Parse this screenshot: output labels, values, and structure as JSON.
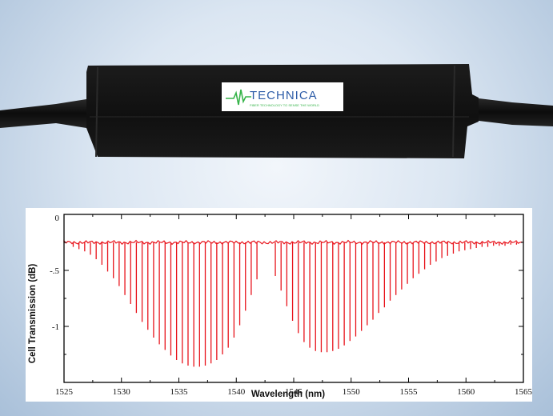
{
  "device": {
    "logo_text": "TECHNICA",
    "logo_tagline": "FIBER TECHNOLOGY TO SENSE THE WORLD",
    "colors": {
      "body": "#121212",
      "logo_blue": "#2e5da8",
      "logo_green": "#37b44a"
    }
  },
  "chart_data": {
    "type": "line",
    "xlabel": "Wavelength (nm)",
    "ylabel": "Cell Transmission (dB)",
    "xlim": [
      1525,
      1565
    ],
    "ylim": [
      -1.5,
      0
    ],
    "x_ticks": [
      1525,
      1530,
      1535,
      1540,
      1545,
      1550,
      1555,
      1560,
      1565
    ],
    "x_tick_labels": [
      "1525",
      "1530",
      "1535",
      "1540",
      "1545",
      "1550",
      "1555",
      "1560",
      "1565"
    ],
    "y_ticks": [
      0,
      -0.5,
      -1
    ],
    "y_tick_labels": [
      "0",
      "-.5",
      "-1"
    ],
    "baseline": -0.25,
    "grid": false,
    "series": [
      {
        "color": "#e8141c",
        "absorption_lines": [
          {
            "x": 1525.8,
            "y": -0.29
          },
          {
            "x": 1526.3,
            "y": -0.31
          },
          {
            "x": 1526.8,
            "y": -0.33
          },
          {
            "x": 1527.3,
            "y": -0.36
          },
          {
            "x": 1527.8,
            "y": -0.4
          },
          {
            "x": 1528.3,
            "y": -0.45
          },
          {
            "x": 1528.8,
            "y": -0.51
          },
          {
            "x": 1529.3,
            "y": -0.57
          },
          {
            "x": 1529.8,
            "y": -0.64
          },
          {
            "x": 1530.3,
            "y": -0.72
          },
          {
            "x": 1530.8,
            "y": -0.8
          },
          {
            "x": 1531.3,
            "y": -0.88
          },
          {
            "x": 1531.8,
            "y": -0.96
          },
          {
            "x": 1532.3,
            "y": -1.03
          },
          {
            "x": 1532.8,
            "y": -1.1
          },
          {
            "x": 1533.3,
            "y": -1.16
          },
          {
            "x": 1533.8,
            "y": -1.21
          },
          {
            "x": 1534.3,
            "y": -1.26
          },
          {
            "x": 1534.8,
            "y": -1.3
          },
          {
            "x": 1535.3,
            "y": -1.33
          },
          {
            "x": 1535.8,
            "y": -1.35
          },
          {
            "x": 1536.3,
            "y": -1.36
          },
          {
            "x": 1536.8,
            "y": -1.36
          },
          {
            "x": 1537.3,
            "y": -1.35
          },
          {
            "x": 1537.8,
            "y": -1.33
          },
          {
            "x": 1538.3,
            "y": -1.3
          },
          {
            "x": 1538.8,
            "y": -1.25
          },
          {
            "x": 1539.3,
            "y": -1.19
          },
          {
            "x": 1539.8,
            "y": -1.1
          },
          {
            "x": 1540.3,
            "y": -0.99
          },
          {
            "x": 1540.8,
            "y": -0.86
          },
          {
            "x": 1541.3,
            "y": -0.72
          },
          {
            "x": 1541.8,
            "y": -0.58
          },
          {
            "x": 1543.4,
            "y": -0.55
          },
          {
            "x": 1543.9,
            "y": -0.68
          },
          {
            "x": 1544.4,
            "y": -0.82
          },
          {
            "x": 1544.9,
            "y": -0.95
          },
          {
            "x": 1545.4,
            "y": -1.06
          },
          {
            "x": 1545.9,
            "y": -1.14
          },
          {
            "x": 1546.4,
            "y": -1.19
          },
          {
            "x": 1546.9,
            "y": -1.22
          },
          {
            "x": 1547.4,
            "y": -1.23
          },
          {
            "x": 1547.9,
            "y": -1.23
          },
          {
            "x": 1548.4,
            "y": -1.22
          },
          {
            "x": 1548.9,
            "y": -1.2
          },
          {
            "x": 1549.4,
            "y": -1.17
          },
          {
            "x": 1549.9,
            "y": -1.13
          },
          {
            "x": 1550.4,
            "y": -1.09
          },
          {
            "x": 1550.9,
            "y": -1.04
          },
          {
            "x": 1551.4,
            "y": -0.99
          },
          {
            "x": 1551.9,
            "y": -0.94
          },
          {
            "x": 1552.4,
            "y": -0.88
          },
          {
            "x": 1552.9,
            "y": -0.83
          },
          {
            "x": 1553.4,
            "y": -0.77
          },
          {
            "x": 1553.9,
            "y": -0.72
          },
          {
            "x": 1554.4,
            "y": -0.67
          },
          {
            "x": 1554.9,
            "y": -0.62
          },
          {
            "x": 1555.4,
            "y": -0.57
          },
          {
            "x": 1555.9,
            "y": -0.53
          },
          {
            "x": 1556.4,
            "y": -0.49
          },
          {
            "x": 1556.9,
            "y": -0.45
          },
          {
            "x": 1557.4,
            "y": -0.42
          },
          {
            "x": 1557.9,
            "y": -0.39
          },
          {
            "x": 1558.4,
            "y": -0.37
          },
          {
            "x": 1558.9,
            "y": -0.35
          },
          {
            "x": 1559.4,
            "y": -0.33
          },
          {
            "x": 1559.9,
            "y": -0.32
          },
          {
            "x": 1560.4,
            "y": -0.31
          },
          {
            "x": 1560.9,
            "y": -0.3
          },
          {
            "x": 1561.4,
            "y": -0.29
          },
          {
            "x": 1561.9,
            "y": -0.29
          },
          {
            "x": 1562.4,
            "y": -0.28
          },
          {
            "x": 1562.9,
            "y": -0.28
          },
          {
            "x": 1563.4,
            "y": -0.28
          },
          {
            "x": 1563.9,
            "y": -0.27
          },
          {
            "x": 1564.4,
            "y": -0.27
          }
        ]
      }
    ]
  }
}
